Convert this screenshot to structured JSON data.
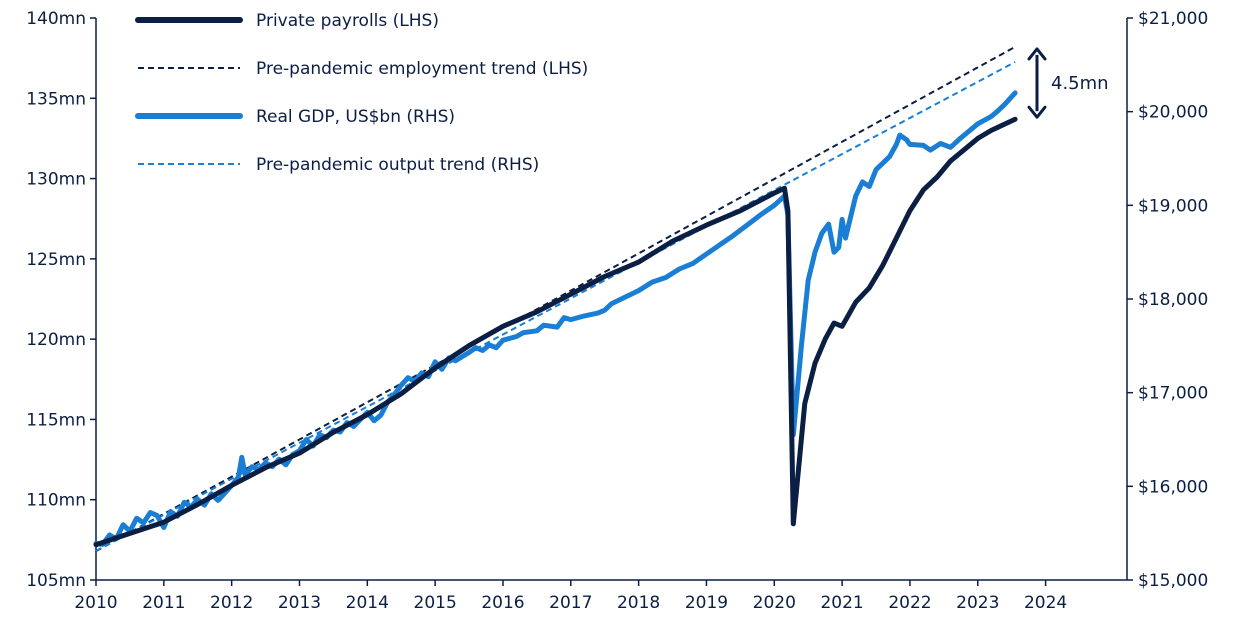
{
  "chart_data": {
    "type": "line",
    "title": "",
    "xlabel": "",
    "ylabel_left": "",
    "ylabel_right": "",
    "x_ticks": [
      "2010",
      "2011",
      "2012",
      "2013",
      "2014",
      "2015",
      "2016",
      "2017",
      "2018",
      "2019",
      "2020",
      "2021",
      "2022",
      "2023",
      "2024"
    ],
    "xlim": [
      2010,
      2025.2
    ],
    "y_left": {
      "range": [
        105,
        140
      ],
      "ticks": [
        "105mn",
        "110mn",
        "115mn",
        "120mn",
        "125mn",
        "130mn",
        "135mn",
        "140mn"
      ]
    },
    "y_right": {
      "range": [
        15000,
        21000
      ],
      "ticks": [
        "$15,000",
        "$16,000",
        "$17,000",
        "$18,000",
        "$19,000",
        "$20,000",
        "$21,000"
      ]
    },
    "grid": false,
    "legend": {
      "position": "top-left",
      "items": [
        {
          "label": "Private payrolls (LHS)",
          "style": "solid-thick",
          "color": "#0b1f44"
        },
        {
          "label": "Pre-pandemic employment trend (LHS)",
          "style": "dashed",
          "color": "#0b1f44"
        },
        {
          "label": "Real GDP, US$bn (RHS)",
          "style": "solid-thick",
          "color": "#1a7fd4"
        },
        {
          "label": "Pre-pandemic output trend (RHS)",
          "style": "dashed",
          "color": "#1a7fd4"
        }
      ]
    },
    "annotation": {
      "text": "4.5mn",
      "from_value": 133.7,
      "to_value": 138.2,
      "x": 2023.7
    },
    "series": [
      {
        "name": "Private payrolls (LHS)",
        "axis": "left",
        "color": "#0b1f44",
        "style": "solid",
        "width": 5,
        "points": [
          [
            2010.0,
            107.2
          ],
          [
            2010.5,
            107.9
          ],
          [
            2011.0,
            108.6
          ],
          [
            2011.5,
            109.7
          ],
          [
            2012.0,
            110.9
          ],
          [
            2012.5,
            112.0
          ],
          [
            2013.0,
            112.9
          ],
          [
            2013.5,
            114.2
          ],
          [
            2014.0,
            115.3
          ],
          [
            2014.5,
            116.6
          ],
          [
            2015.0,
            118.2
          ],
          [
            2015.5,
            119.6
          ],
          [
            2016.0,
            120.8
          ],
          [
            2016.5,
            121.7
          ],
          [
            2017.0,
            122.8
          ],
          [
            2017.5,
            123.9
          ],
          [
            2018.0,
            124.8
          ],
          [
            2018.5,
            126.1
          ],
          [
            2019.0,
            127.1
          ],
          [
            2019.5,
            128.0
          ],
          [
            2020.0,
            129.1
          ],
          [
            2020.15,
            129.4
          ],
          [
            2020.2,
            128.0
          ],
          [
            2020.28,
            108.5
          ],
          [
            2020.45,
            116.0
          ],
          [
            2020.6,
            118.5
          ],
          [
            2020.75,
            120.0
          ],
          [
            2020.88,
            121.0
          ],
          [
            2021.0,
            120.8
          ],
          [
            2021.2,
            122.3
          ],
          [
            2021.4,
            123.2
          ],
          [
            2021.6,
            124.6
          ],
          [
            2021.8,
            126.3
          ],
          [
            2022.0,
            128.0
          ],
          [
            2022.2,
            129.3
          ],
          [
            2022.4,
            130.1
          ],
          [
            2022.6,
            131.1
          ],
          [
            2022.8,
            131.8
          ],
          [
            2023.0,
            132.5
          ],
          [
            2023.2,
            133.0
          ],
          [
            2023.4,
            133.4
          ],
          [
            2023.55,
            133.7
          ]
        ]
      },
      {
        "name": "Pre-pandemic employment trend (LHS)",
        "axis": "left",
        "color": "#0b1f44",
        "style": "dashed",
        "width": 2,
        "points": [
          [
            2010.0,
            106.8
          ],
          [
            2023.55,
            138.2
          ]
        ]
      },
      {
        "name": "Real GDP, US$bn (RHS)",
        "axis": "right",
        "color": "#1a7fd4",
        "style": "solid",
        "width": 5,
        "points": [
          [
            2010.0,
            15390
          ],
          [
            2010.1,
            15380
          ],
          [
            2010.2,
            15480
          ],
          [
            2010.3,
            15440
          ],
          [
            2010.4,
            15590
          ],
          [
            2010.5,
            15520
          ],
          [
            2010.6,
            15660
          ],
          [
            2010.7,
            15610
          ],
          [
            2010.8,
            15720
          ],
          [
            2010.9,
            15690
          ],
          [
            2011.0,
            15560
          ],
          [
            2011.1,
            15730
          ],
          [
            2011.2,
            15680
          ],
          [
            2011.3,
            15830
          ],
          [
            2011.4,
            15780
          ],
          [
            2011.5,
            15860
          ],
          [
            2011.6,
            15800
          ],
          [
            2011.7,
            15920
          ],
          [
            2011.8,
            15850
          ],
          [
            2012.0,
            16010
          ],
          [
            2012.1,
            16100
          ],
          [
            2012.15,
            16310
          ],
          [
            2012.2,
            16120
          ],
          [
            2012.3,
            16210
          ],
          [
            2012.4,
            16180
          ],
          [
            2012.5,
            16250
          ],
          [
            2012.6,
            16210
          ],
          [
            2012.7,
            16290
          ],
          [
            2012.8,
            16230
          ],
          [
            2012.9,
            16340
          ],
          [
            2013.0,
            16380
          ],
          [
            2013.1,
            16500
          ],
          [
            2013.2,
            16430
          ],
          [
            2013.3,
            16550
          ],
          [
            2013.4,
            16520
          ],
          [
            2013.5,
            16600
          ],
          [
            2013.6,
            16580
          ],
          [
            2013.7,
            16680
          ],
          [
            2013.8,
            16640
          ],
          [
            2014.0,
            16790
          ],
          [
            2014.1,
            16700
          ],
          [
            2014.2,
            16760
          ],
          [
            2014.3,
            16900
          ],
          [
            2014.4,
            16980
          ],
          [
            2014.5,
            17080
          ],
          [
            2014.6,
            17160
          ],
          [
            2014.7,
            17120
          ],
          [
            2014.8,
            17210
          ],
          [
            2014.9,
            17170
          ],
          [
            2015.0,
            17330
          ],
          [
            2015.1,
            17250
          ],
          [
            2015.2,
            17370
          ],
          [
            2015.3,
            17340
          ],
          [
            2015.5,
            17430
          ],
          [
            2015.6,
            17480
          ],
          [
            2015.7,
            17450
          ],
          [
            2015.8,
            17510
          ],
          [
            2015.9,
            17480
          ],
          [
            2016.0,
            17560
          ],
          [
            2016.2,
            17600
          ],
          [
            2016.3,
            17640
          ],
          [
            2016.5,
            17660
          ],
          [
            2016.6,
            17720
          ],
          [
            2016.8,
            17700
          ],
          [
            2016.9,
            17800
          ],
          [
            2017.0,
            17780
          ],
          [
            2017.2,
            17820
          ],
          [
            2017.4,
            17850
          ],
          [
            2017.5,
            17880
          ],
          [
            2017.6,
            17950
          ],
          [
            2017.8,
            18020
          ],
          [
            2018.0,
            18090
          ],
          [
            2018.2,
            18180
          ],
          [
            2018.4,
            18230
          ],
          [
            2018.6,
            18320
          ],
          [
            2018.8,
            18380
          ],
          [
            2019.0,
            18480
          ],
          [
            2019.2,
            18580
          ],
          [
            2019.4,
            18680
          ],
          [
            2019.6,
            18790
          ],
          [
            2019.8,
            18900
          ],
          [
            2020.0,
            19000
          ],
          [
            2020.15,
            19100
          ],
          [
            2020.2,
            18900
          ],
          [
            2020.28,
            16550
          ],
          [
            2020.4,
            17500
          ],
          [
            2020.5,
            18200
          ],
          [
            2020.6,
            18500
          ],
          [
            2020.7,
            18700
          ],
          [
            2020.8,
            18800
          ],
          [
            2020.88,
            18500
          ],
          [
            2020.95,
            18550
          ],
          [
            2021.0,
            18850
          ],
          [
            2021.05,
            18650
          ],
          [
            2021.15,
            18950
          ],
          [
            2021.2,
            19100
          ],
          [
            2021.3,
            19250
          ],
          [
            2021.4,
            19200
          ],
          [
            2021.5,
            19380
          ],
          [
            2021.6,
            19450
          ],
          [
            2021.7,
            19520
          ],
          [
            2021.8,
            19650
          ],
          [
            2021.85,
            19750
          ],
          [
            2021.95,
            19700
          ],
          [
            2022.0,
            19650
          ],
          [
            2022.2,
            19640
          ],
          [
            2022.3,
            19590
          ],
          [
            2022.45,
            19660
          ],
          [
            2022.6,
            19620
          ],
          [
            2022.75,
            19720
          ],
          [
            2022.85,
            19780
          ],
          [
            2023.0,
            19870
          ],
          [
            2023.2,
            19950
          ],
          [
            2023.3,
            20010
          ],
          [
            2023.4,
            20080
          ],
          [
            2023.55,
            20200
          ]
        ]
      },
      {
        "name": "Pre-pandemic output trend (RHS)",
        "axis": "right",
        "color": "#1a7fd4",
        "style": "dashed",
        "width": 2,
        "points": [
          [
            2010.0,
            15310
          ],
          [
            2023.55,
            20530
          ]
        ]
      }
    ]
  }
}
